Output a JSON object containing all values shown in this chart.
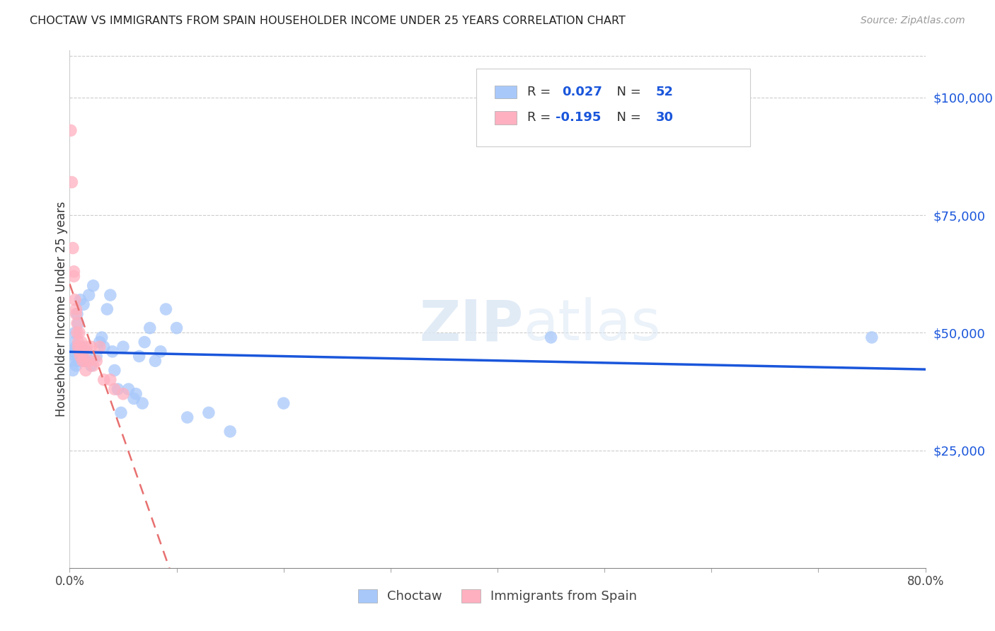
{
  "title": "CHOCTAW VS IMMIGRANTS FROM SPAIN HOUSEHOLDER INCOME UNDER 25 YEARS CORRELATION CHART",
  "source": "Source: ZipAtlas.com",
  "ylabel": "Householder Income Under 25 years",
  "ytick_labels": [
    "$25,000",
    "$50,000",
    "$75,000",
    "$100,000"
  ],
  "ytick_values": [
    25000,
    50000,
    75000,
    100000
  ],
  "xlim": [
    0.0,
    0.8
  ],
  "ylim": [
    0,
    110000
  ],
  "watermark_zip": "ZIP",
  "watermark_atlas": "atlas",
  "r_choctaw": 0.027,
  "n_choctaw": 52,
  "r_spain": -0.195,
  "n_spain": 30,
  "choctaw_color": "#a8c8fa",
  "spain_color": "#ffb0c0",
  "trend_choctaw_color": "#1a56db",
  "trend_spain_color": "#e87070",
  "choctaw_x": [
    0.001,
    0.002,
    0.003,
    0.004,
    0.005,
    0.005,
    0.006,
    0.006,
    0.007,
    0.007,
    0.008,
    0.008,
    0.009,
    0.01,
    0.01,
    0.011,
    0.012,
    0.013,
    0.014,
    0.015,
    0.016,
    0.018,
    0.02,
    0.022,
    0.025,
    0.028,
    0.03,
    0.032,
    0.035,
    0.038,
    0.04,
    0.042,
    0.045,
    0.048,
    0.05,
    0.055,
    0.06,
    0.062,
    0.065,
    0.068,
    0.07,
    0.075,
    0.08,
    0.085,
    0.09,
    0.1,
    0.11,
    0.13,
    0.15,
    0.2,
    0.45,
    0.75
  ],
  "choctaw_y": [
    44000,
    45500,
    42000,
    48000,
    50000,
    46000,
    43000,
    47000,
    54000,
    44000,
    52000,
    47000,
    45000,
    57000,
    44000,
    47000,
    46000,
    56000,
    44000,
    44000,
    46000,
    58000,
    43000,
    60000,
    45000,
    48000,
    49000,
    47000,
    55000,
    58000,
    46000,
    42000,
    38000,
    33000,
    47000,
    38000,
    36000,
    37000,
    45000,
    35000,
    48000,
    51000,
    44000,
    46000,
    55000,
    51000,
    32000,
    33000,
    29000,
    35000,
    49000,
    49000
  ],
  "spain_x": [
    0.001,
    0.002,
    0.003,
    0.004,
    0.004,
    0.005,
    0.006,
    0.006,
    0.007,
    0.007,
    0.008,
    0.008,
    0.009,
    0.009,
    0.01,
    0.011,
    0.012,
    0.013,
    0.014,
    0.015,
    0.016,
    0.018,
    0.02,
    0.022,
    0.025,
    0.028,
    0.032,
    0.038,
    0.042,
    0.05
  ],
  "spain_y": [
    93000,
    82000,
    68000,
    63000,
    62000,
    57000,
    55000,
    54000,
    52000,
    50000,
    48000,
    47000,
    50000,
    46000,
    45000,
    48000,
    44000,
    46000,
    44000,
    42000,
    47000,
    44000,
    47000,
    43000,
    44000,
    47000,
    40000,
    40000,
    38000,
    37000
  ],
  "background_color": "#ffffff",
  "grid_color": "#cccccc"
}
